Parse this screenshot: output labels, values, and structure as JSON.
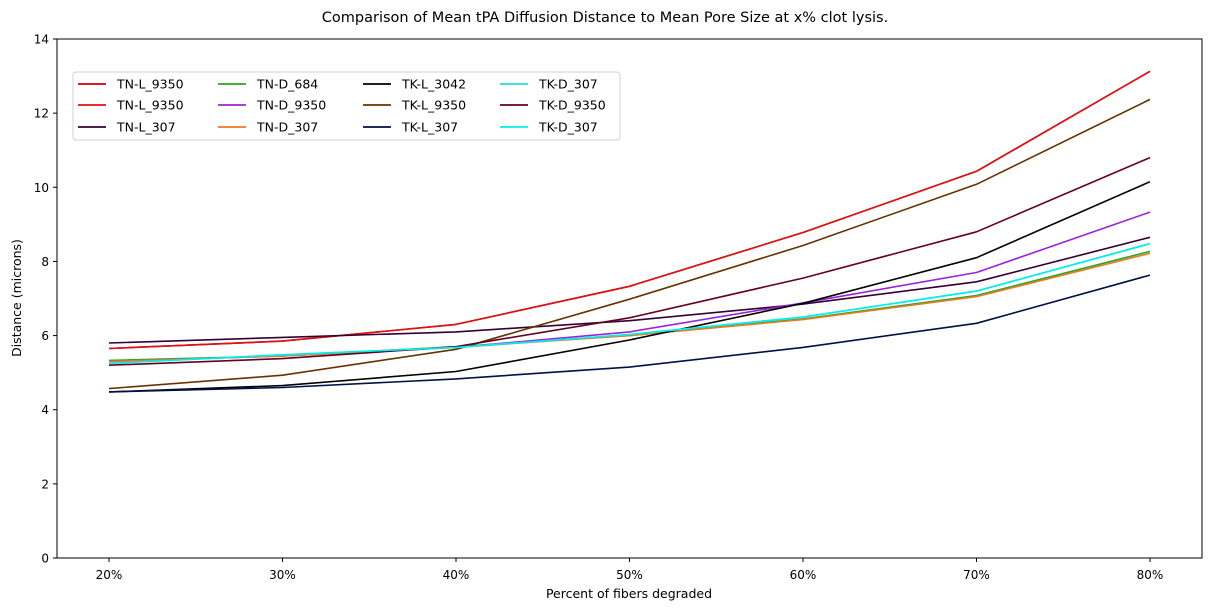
{
  "chart_data": {
    "type": "line",
    "title": "Comparison of Mean tPA Diffusion Distance to Mean Pore Size at x% clot lysis.",
    "xlabel": "Percent of fibers degraded",
    "ylabel": "Distance (microns)",
    "categories": [
      "20%",
      "30%",
      "40%",
      "50%",
      "60%",
      "70%",
      "80%"
    ],
    "ylim": [
      0,
      14
    ],
    "yticks": [
      0,
      2,
      4,
      6,
      8,
      10,
      12,
      14
    ],
    "grid": false,
    "legend_position": "upper-left",
    "series": [
      {
        "name": "TN-L_9350",
        "color": "#cc0000",
        "values": [
          5.65,
          5.85,
          6.3,
          7.33,
          8.78,
          10.43,
          13.13
        ]
      },
      {
        "name": "TN-L_9350",
        "color": "#dd1111",
        "values": [
          5.65,
          5.85,
          6.3,
          7.33,
          8.78,
          10.43,
          13.13
        ]
      },
      {
        "name": "TN-L_307",
        "color": "#330033",
        "values": [
          5.8,
          5.95,
          6.1,
          6.4,
          6.85,
          7.45,
          8.65
        ]
      },
      {
        "name": "TN-D_684",
        "color": "#22aa22",
        "values": [
          5.33,
          5.45,
          5.7,
          6.0,
          6.45,
          7.08,
          8.27
        ]
      },
      {
        "name": "TN-D_9350",
        "color": "#9922dd",
        "values": [
          5.3,
          5.45,
          5.68,
          6.1,
          6.88,
          7.7,
          9.33
        ]
      },
      {
        "name": "TN-D_307",
        "color": "#ee7722",
        "values": [
          5.3,
          5.45,
          5.68,
          6.0,
          6.43,
          7.05,
          8.22
        ]
      },
      {
        "name": "TK-L_3042",
        "color": "#000000",
        "values": [
          4.48,
          4.65,
          5.03,
          5.88,
          6.87,
          8.1,
          10.15
        ]
      },
      {
        "name": "TK-L_9350",
        "color": "#663300",
        "values": [
          4.57,
          4.93,
          5.63,
          6.98,
          8.43,
          10.08,
          12.37
        ]
      },
      {
        "name": "TK-L_307",
        "color": "#001144",
        "values": [
          4.48,
          4.6,
          4.83,
          5.15,
          5.68,
          6.33,
          7.63
        ]
      },
      {
        "name": "TK-D_307",
        "color": "#22dddd",
        "values": [
          5.25,
          5.48,
          5.68,
          6.03,
          6.5,
          7.2,
          8.48
        ]
      },
      {
        "name": "TK-D_9350",
        "color": "#660022",
        "values": [
          5.2,
          5.38,
          5.7,
          6.48,
          7.55,
          8.8,
          10.8
        ]
      },
      {
        "name": "TK-D_307",
        "color": "#00eeee",
        "values": [
          5.25,
          5.48,
          5.68,
          6.03,
          6.5,
          7.2,
          8.48
        ]
      }
    ]
  }
}
